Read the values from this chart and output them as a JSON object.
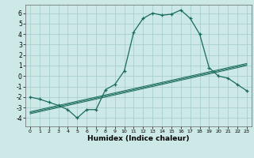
{
  "xlabel": "Humidex (Indice chaleur)",
  "ylabel": "",
  "background_color": "#cce9e7",
  "grid_color": "#aacfcc",
  "line_color": "#1a6b5a",
  "x_values": [
    0,
    1,
    2,
    3,
    4,
    5,
    6,
    7,
    8,
    9,
    10,
    11,
    12,
    13,
    14,
    15,
    16,
    17,
    18,
    19,
    20,
    21,
    22,
    23
  ],
  "y_main": [
    -2.0,
    -2.2,
    -2.5,
    -2.8,
    -3.2,
    -4.0,
    -3.2,
    -3.2,
    -1.3,
    -0.8,
    0.5,
    4.2,
    5.5,
    6.0,
    5.8,
    5.9,
    6.3,
    5.5,
    4.0,
    0.8,
    -0.0,
    -0.2,
    -0.8,
    -1.4
  ],
  "y_reg1": [
    -3.5,
    -3.3,
    -3.1,
    -2.9,
    -2.7,
    -2.5,
    -2.3,
    -2.1,
    -1.9,
    -1.7,
    -1.5,
    -1.3,
    -1.1,
    -0.9,
    -0.7,
    -0.5,
    -0.3,
    -0.1,
    0.1,
    0.3,
    0.5,
    0.7,
    0.9,
    1.1
  ],
  "y_reg2": [
    -3.6,
    -3.4,
    -3.2,
    -3.0,
    -2.8,
    -2.6,
    -2.4,
    -2.2,
    -2.0,
    -1.8,
    -1.6,
    -1.4,
    -1.2,
    -1.0,
    -0.8,
    -0.6,
    -0.4,
    -0.2,
    0.0,
    0.2,
    0.4,
    0.6,
    0.8,
    1.0
  ],
  "y_reg3": [
    -3.4,
    -3.2,
    -3.0,
    -2.8,
    -2.6,
    -2.4,
    -2.2,
    -2.0,
    -1.8,
    -1.6,
    -1.4,
    -1.2,
    -1.0,
    -0.8,
    -0.6,
    -0.4,
    -0.2,
    0.0,
    0.2,
    0.4,
    0.6,
    0.8,
    1.0,
    1.2
  ],
  "ylim": [
    -4.8,
    6.8
  ],
  "xlim": [
    -0.5,
    23.5
  ],
  "yticks": [
    -4,
    -3,
    -2,
    -1,
    0,
    1,
    2,
    3,
    4,
    5,
    6
  ],
  "xticks": [
    0,
    1,
    2,
    3,
    4,
    5,
    6,
    7,
    8,
    9,
    10,
    11,
    12,
    13,
    14,
    15,
    16,
    17,
    18,
    19,
    20,
    21,
    22,
    23
  ],
  "xlabel_fontsize": 6.5,
  "xlabel_fontweight": "bold",
  "tick_fontsize_x": 4.5,
  "tick_fontsize_y": 5.5
}
